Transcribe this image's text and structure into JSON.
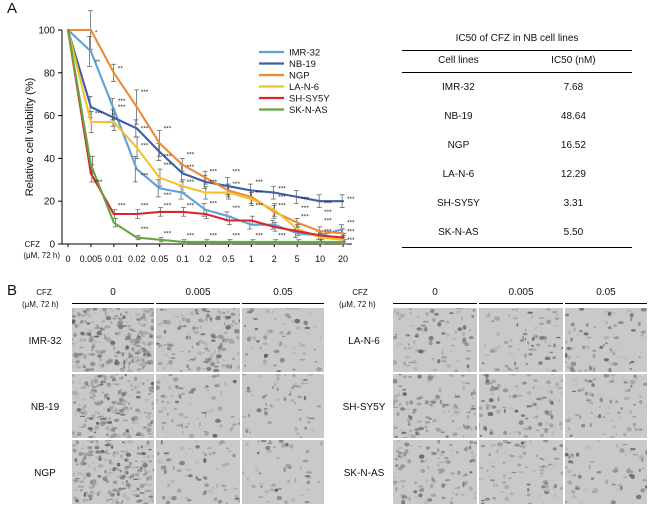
{
  "panel_labels": {
    "a": "A",
    "b": "B"
  },
  "chart_data": {
    "type": "line",
    "ylabel": "Relative cell viability (%)",
    "x_axis_title": "CFZ",
    "x_axis_unit": "(μM, 72 h)",
    "categories": [
      "0",
      "0.005",
      "0.01",
      "0.02",
      "0.05",
      "0.1",
      "0.2",
      "0.5",
      "1",
      "2",
      "5",
      "10",
      "20"
    ],
    "ylim": [
      0,
      100
    ],
    "yticks": [
      "0",
      "20",
      "40",
      "60",
      "80",
      "100"
    ],
    "grid": false,
    "legend_position": "top-right",
    "series": [
      {
        "name": "IMR-32",
        "color": "#5aa2d8",
        "values": [
          100,
          90,
          63,
          35,
          26,
          24,
          16,
          13,
          9,
          9,
          5,
          4,
          7
        ],
        "errors": [
          6,
          7,
          5,
          6,
          4,
          3,
          3,
          2,
          2,
          2,
          2,
          2,
          2
        ]
      },
      {
        "name": "NB-19",
        "color": "#3a5ea8",
        "values": [
          100,
          64,
          59,
          54,
          43,
          33,
          29,
          27,
          25,
          24,
          22,
          20,
          20
        ],
        "errors": [
          4,
          5,
          4,
          4,
          4,
          4,
          3,
          4,
          3,
          3,
          3,
          3,
          3
        ]
      },
      {
        "name": "NGP",
        "color": "#ef8a34",
        "values": [
          100,
          100,
          80,
          64,
          47,
          37,
          31,
          25,
          22,
          15,
          10,
          6,
          5
        ],
        "errors": [
          7,
          9,
          4,
          8,
          6,
          3,
          3,
          3,
          3,
          3,
          2,
          2,
          2
        ]
      },
      {
        "name": "LA-N-6",
        "color": "#f5c12e",
        "values": [
          100,
          57,
          57,
          45,
          31,
          27,
          24,
          24,
          21,
          16,
          7,
          3,
          2
        ],
        "errors": [
          5,
          5,
          4,
          5,
          4,
          3,
          3,
          3,
          3,
          3,
          2,
          2,
          2
        ]
      },
      {
        "name": "SH-SY5Y",
        "color": "#d8262e",
        "values": [
          100,
          33,
          14,
          14,
          15,
          15,
          14,
          11,
          11,
          8,
          6,
          4,
          3
        ],
        "errors": [
          3,
          4,
          2,
          2,
          2,
          2,
          2,
          2,
          2,
          2,
          2,
          2,
          2
        ]
      },
      {
        "name": "SK-N-AS",
        "color": "#64a640",
        "values": [
          100,
          37,
          10,
          3,
          2,
          1,
          1,
          1,
          1,
          1,
          1,
          1,
          1
        ],
        "errors": [
          3,
          4,
          2,
          1,
          1,
          1,
          1,
          1,
          1,
          1,
          1,
          1,
          1
        ]
      }
    ],
    "annotations": [
      {
        "cat": "0.005",
        "value": 98,
        "text": "*"
      },
      {
        "cat": "0.005",
        "value": 84,
        "text": "**"
      },
      {
        "cat": "0.005",
        "value": 60,
        "text": "***"
      },
      {
        "cat": "0.005",
        "value": 28,
        "text": "***"
      },
      {
        "cat": "0.01",
        "value": 81,
        "text": "**"
      },
      {
        "cat": "0.01",
        "value": 66,
        "text": "***"
      },
      {
        "cat": "0.01",
        "value": 63,
        "text": "***"
      },
      {
        "cat": "0.01",
        "value": 17,
        "text": "***"
      },
      {
        "cat": "0.02",
        "value": 70,
        "text": "***"
      },
      {
        "cat": "0.02",
        "value": 53,
        "text": "***"
      },
      {
        "cat": "0.02",
        "value": 45,
        "text": "***"
      },
      {
        "cat": "0.02",
        "value": 31,
        "text": "***"
      },
      {
        "cat": "0.02",
        "value": 17,
        "text": "***"
      },
      {
        "cat": "0.02",
        "value": 6,
        "text": "***"
      },
      {
        "cat": "0.05",
        "value": 53,
        "text": "***"
      },
      {
        "cat": "0.05",
        "value": 40,
        "text": "***"
      },
      {
        "cat": "0.05",
        "value": 36,
        "text": "***"
      },
      {
        "cat": "0.05",
        "value": 22,
        "text": "***"
      },
      {
        "cat": "0.05",
        "value": 17,
        "text": "***"
      },
      {
        "cat": "0.05",
        "value": 4,
        "text": "***"
      },
      {
        "cat": "0.1",
        "value": 41,
        "text": "***"
      },
      {
        "cat": "0.1",
        "value": 35,
        "text": "***"
      },
      {
        "cat": "0.1",
        "value": 28,
        "text": "***"
      },
      {
        "cat": "0.1",
        "value": 17,
        "text": "***"
      },
      {
        "cat": "0.1",
        "value": 3,
        "text": "***"
      },
      {
        "cat": "0.2",
        "value": 33,
        "text": "***"
      },
      {
        "cat": "0.2",
        "value": 28,
        "text": "***"
      },
      {
        "cat": "0.2",
        "value": 18,
        "text": "***"
      },
      {
        "cat": "0.2",
        "value": 3,
        "text": "***"
      },
      {
        "cat": "0.5",
        "value": 33,
        "text": "***"
      },
      {
        "cat": "0.5",
        "value": 27,
        "text": "***"
      },
      {
        "cat": "0.5",
        "value": 16,
        "text": "***"
      },
      {
        "cat": "0.5",
        "value": 3,
        "text": "***"
      },
      {
        "cat": "1",
        "value": 28,
        "text": "***"
      },
      {
        "cat": "1",
        "value": 23,
        "text": "***"
      },
      {
        "cat": "1",
        "value": 17,
        "text": "***"
      },
      {
        "cat": "1",
        "value": 3,
        "text": "***"
      },
      {
        "cat": "2",
        "value": 25,
        "text": "***"
      },
      {
        "cat": "2",
        "value": 21,
        "text": "***"
      },
      {
        "cat": "2",
        "value": 17,
        "text": "***"
      },
      {
        "cat": "2",
        "value": 3,
        "text": "***"
      },
      {
        "cat": "5",
        "value": 20,
        "text": "***"
      },
      {
        "cat": "5",
        "value": 16,
        "text": "***"
      },
      {
        "cat": "5",
        "value": 12,
        "text": "***"
      },
      {
        "cat": "10",
        "value": 18,
        "text": "***"
      },
      {
        "cat": "10",
        "value": 14,
        "text": "***"
      },
      {
        "cat": "10",
        "value": 10,
        "text": "***"
      },
      {
        "cat": "10",
        "value": 5,
        "text": "***"
      },
      {
        "cat": "20",
        "value": 20,
        "text": "***"
      },
      {
        "cat": "20",
        "value": 9,
        "text": "***"
      },
      {
        "cat": "20",
        "value": 5,
        "text": "***"
      },
      {
        "cat": "20",
        "value": 1,
        "text": "***"
      }
    ]
  },
  "ic50_table": {
    "title": "IC50 of CFZ in NB cell lines",
    "columns": [
      "Cell lines",
      "IC50 (nM)"
    ],
    "rows": [
      {
        "cell_line": "IMR-32",
        "ic50": "7.68"
      },
      {
        "cell_line": "NB-19",
        "ic50": "48.64"
      },
      {
        "cell_line": "NGP",
        "ic50": "16.52"
      },
      {
        "cell_line": "LA-N-6",
        "ic50": "12.29"
      },
      {
        "cell_line": "SH-SY5Y",
        "ic50": "3.31"
      },
      {
        "cell_line": "SK-N-AS",
        "ic50": "5.50"
      }
    ]
  },
  "microscopy": {
    "cfz_label": "CFZ",
    "unit_label": "(μM, 72 h)",
    "doses": [
      "0",
      "0.005",
      "0.05"
    ],
    "left_rows": [
      "IMR-32",
      "NB-19",
      "NGP"
    ],
    "right_rows": [
      "LA-N-6",
      "SH-SY5Y",
      "SK-N-AS"
    ]
  }
}
